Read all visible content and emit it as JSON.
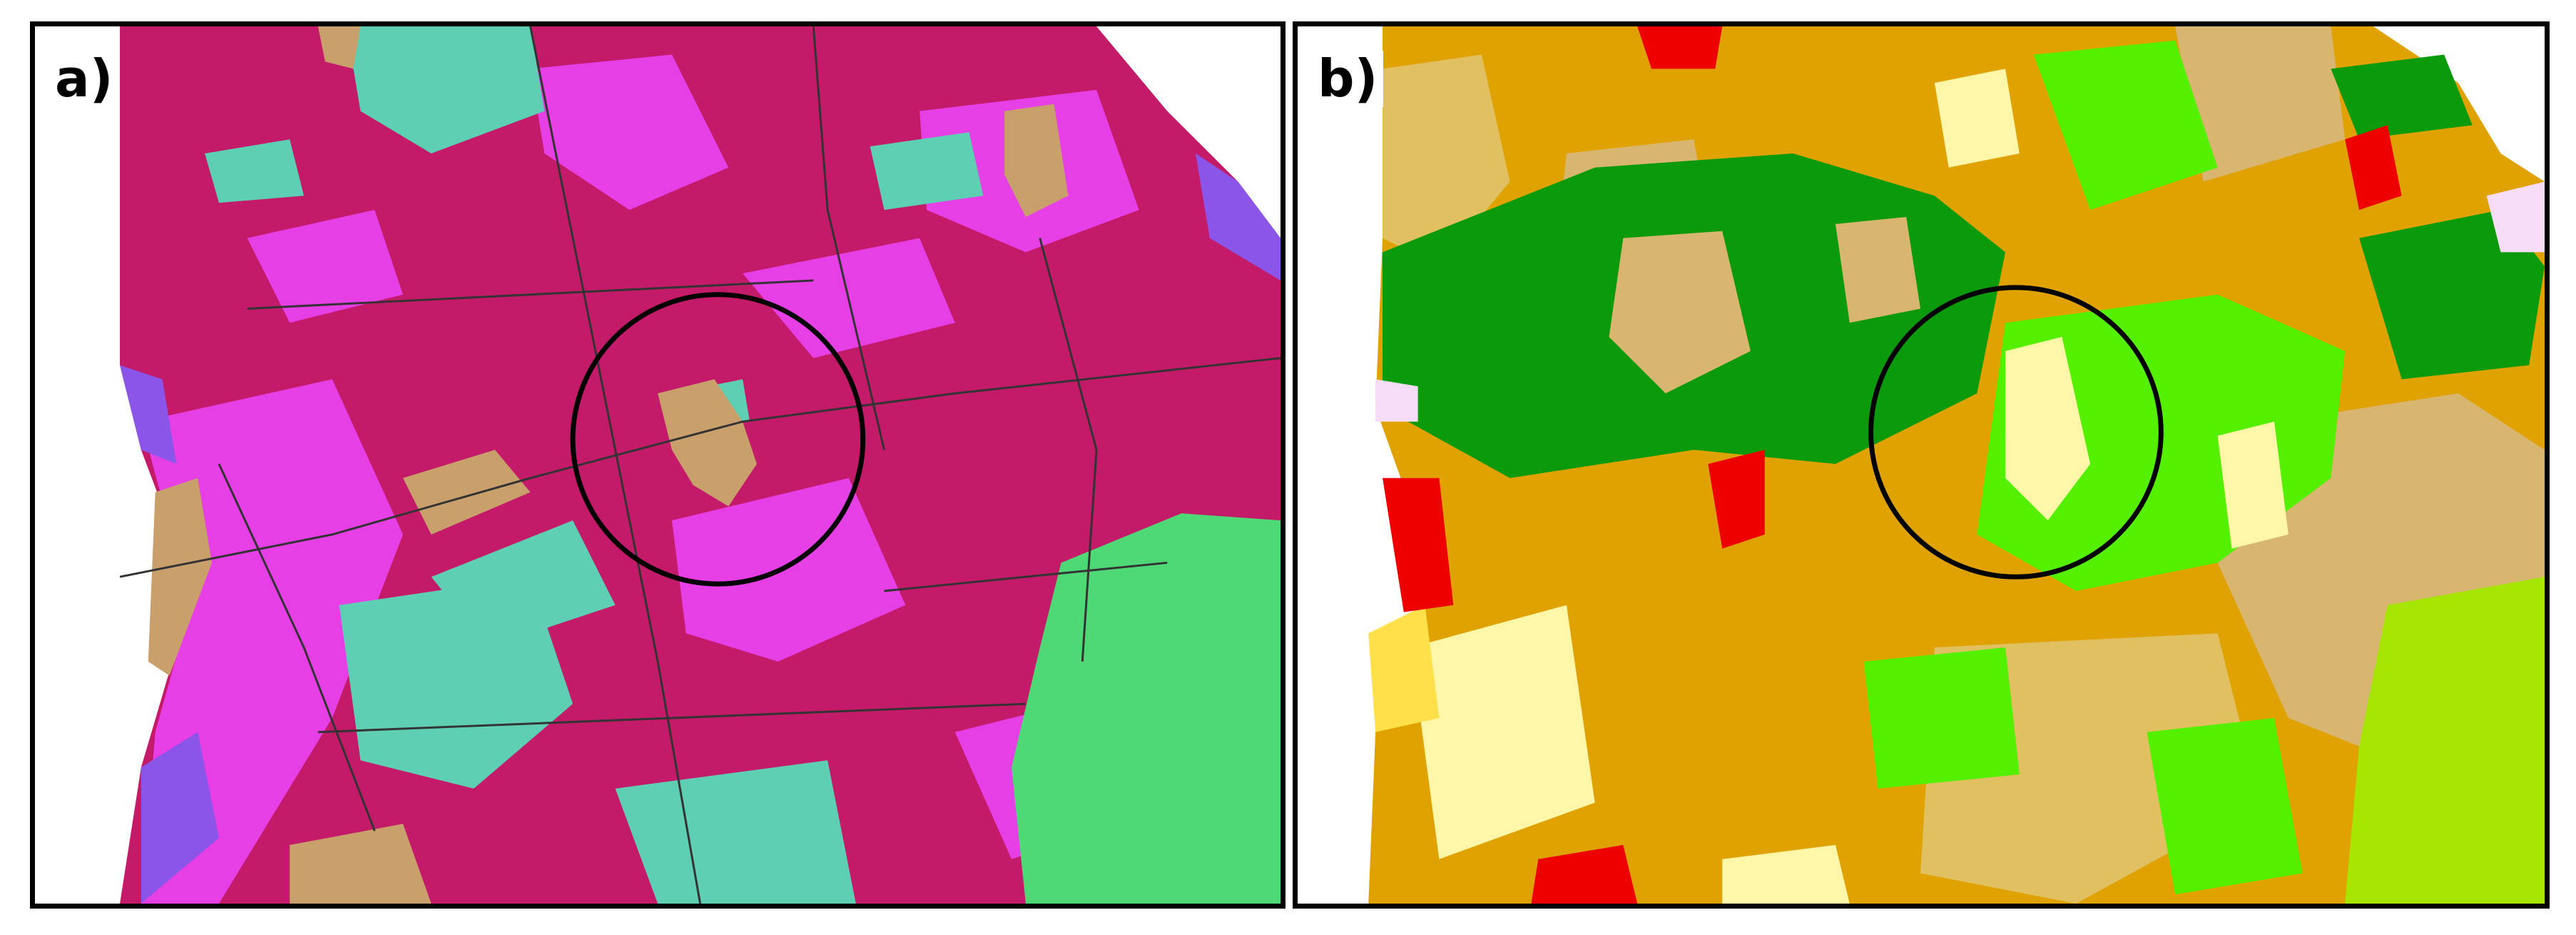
{
  "panels": [
    {
      "label": "a)",
      "colors": {
        "dominant": "#c41a6a",
        "secondary": "#e63fe6",
        "teal": "#5ecfb2",
        "tan": "#c9a06b",
        "violet": "#8a55e8",
        "green": "#4fd876",
        "linework": "#333333"
      }
    },
    {
      "label": "b)",
      "colors": {
        "orange": "#e0a200",
        "khaki": "#e0c060",
        "beige": "#d8b670",
        "dark_green": "#0b9a0b",
        "bright_green": "#55f000",
        "yellow_green": "#a6e600",
        "pale_yellow": "#fff6a8",
        "yellow": "#ffe04a",
        "red": "#ee0000",
        "pale_pink": "#f6dcf6"
      }
    }
  ],
  "highlight_circle_color": "#000000"
}
